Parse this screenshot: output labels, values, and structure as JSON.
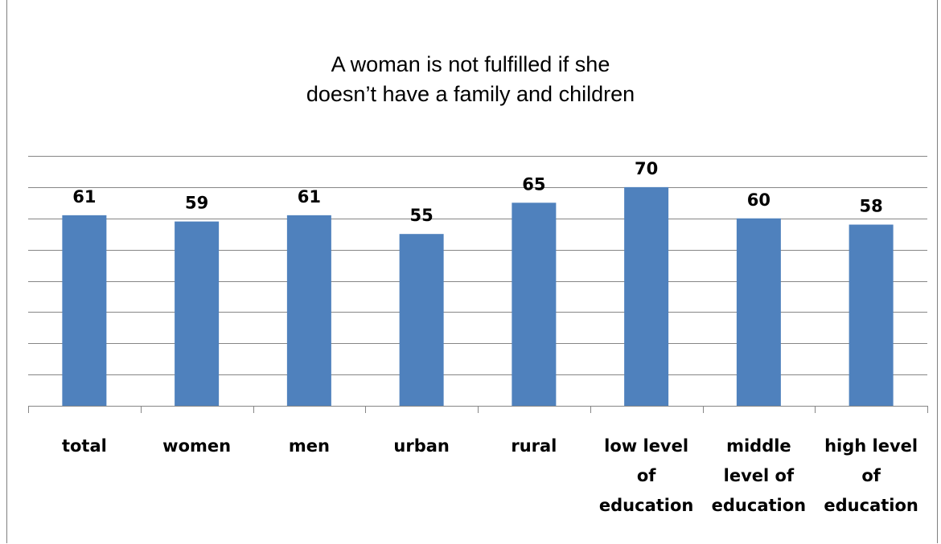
{
  "chart_data": {
    "type": "bar",
    "title_lines": [
      "A woman is not fulfilled if she",
      "doesn’t have a family and children"
    ],
    "categories": [
      [
        "total"
      ],
      [
        "women"
      ],
      [
        "men"
      ],
      [
        "urban"
      ],
      [
        "rural"
      ],
      [
        "low level",
        "of",
        "education"
      ],
      [
        "middle",
        "level of",
        "education"
      ],
      [
        "high level",
        "of",
        "education"
      ]
    ],
    "values": [
      61,
      59,
      61,
      55,
      65,
      70,
      60,
      58
    ],
    "data_labels": [
      "61",
      "59",
      "61",
      "55",
      "65",
      "70",
      "60",
      "58"
    ],
    "ylim": [
      0,
      70
    ],
    "ygrid_step": 10,
    "grid": true,
    "xlabel": "",
    "ylabel": "",
    "legend": "none",
    "colors": {
      "bar": "#4f81bd",
      "grid": "#868686",
      "axis": "#868686"
    }
  }
}
